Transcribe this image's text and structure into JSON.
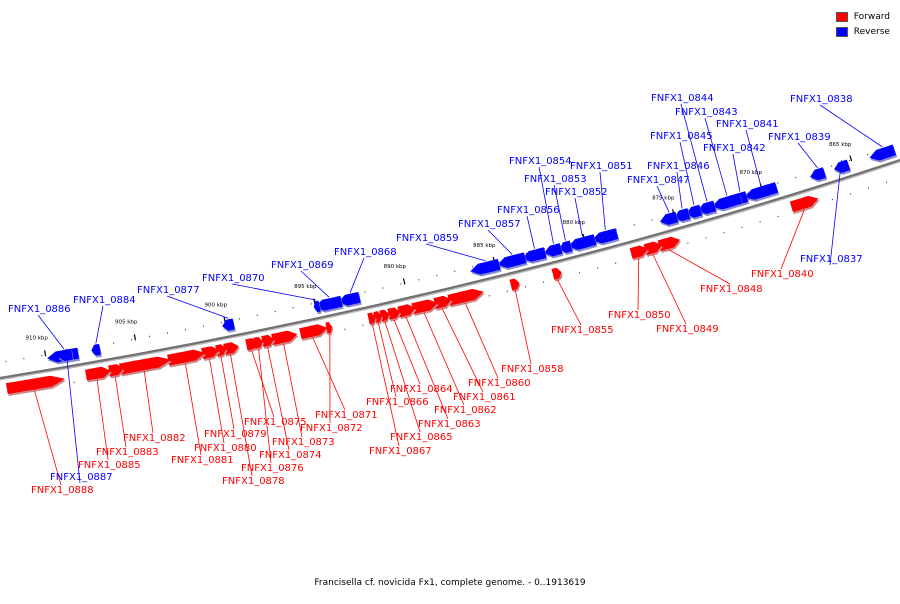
{
  "legend": {
    "forward_label": "Forward",
    "reverse_label": "Reverse",
    "forward_color": "#ff0000",
    "reverse_color": "#0000ff"
  },
  "caption": "Francisella cf. novicida Fx1, complete genome. - 0..1913619",
  "colors": {
    "forward": "#ff0000",
    "reverse": "#0000ff",
    "axis": "#888888"
  },
  "scale_labels": [
    "865 kbp",
    "870 kbp",
    "875 kbp",
    "880 kbp",
    "885 kbp",
    "890 kbp",
    "895 kbp",
    "900 kbp",
    "905 kbp",
    "910 kbp"
  ],
  "genes": [
    {
      "label": "FNFX1_0837",
      "strand": "reverse"
    },
    {
      "label": "FNFX1_0838",
      "strand": "reverse"
    },
    {
      "label": "FNFX1_0839",
      "strand": "reverse"
    },
    {
      "label": "FNFX1_0840",
      "strand": "forward"
    },
    {
      "label": "FNFX1_0841",
      "strand": "reverse"
    },
    {
      "label": "FNFX1_0842",
      "strand": "reverse"
    },
    {
      "label": "FNFX1_0843",
      "strand": "reverse"
    },
    {
      "label": "FNFX1_0844",
      "strand": "reverse"
    },
    {
      "label": "FNFX1_0845",
      "strand": "reverse"
    },
    {
      "label": "FNFX1_0846",
      "strand": "reverse"
    },
    {
      "label": "FNFX1_0847",
      "strand": "reverse"
    },
    {
      "label": "FNFX1_0848",
      "strand": "forward"
    },
    {
      "label": "FNFX1_0849",
      "strand": "forward"
    },
    {
      "label": "FNFX1_0850",
      "strand": "forward"
    },
    {
      "label": "FNFX1_0851",
      "strand": "reverse"
    },
    {
      "label": "FNFX1_0852",
      "strand": "reverse"
    },
    {
      "label": "FNFX1_0853",
      "strand": "reverse"
    },
    {
      "label": "FNFX1_0854",
      "strand": "reverse"
    },
    {
      "label": "FNFX1_0855",
      "strand": "forward"
    },
    {
      "label": "FNFX1_0856",
      "strand": "reverse"
    },
    {
      "label": "FNFX1_0857",
      "strand": "reverse"
    },
    {
      "label": "FNFX1_0858",
      "strand": "forward"
    },
    {
      "label": "FNFX1_0859",
      "strand": "reverse"
    },
    {
      "label": "FNFX1_0860",
      "strand": "forward"
    },
    {
      "label": "FNFX1_0861",
      "strand": "forward"
    },
    {
      "label": "FNFX1_0862",
      "strand": "forward"
    },
    {
      "label": "FNFX1_0863",
      "strand": "forward"
    },
    {
      "label": "FNFX1_0864",
      "strand": "forward"
    },
    {
      "label": "FNFX1_0865",
      "strand": "forward"
    },
    {
      "label": "FNFX1_0866",
      "strand": "forward"
    },
    {
      "label": "FNFX1_0867",
      "strand": "forward"
    },
    {
      "label": "FNFX1_0868",
      "strand": "reverse"
    },
    {
      "label": "FNFX1_0869",
      "strand": "reverse"
    },
    {
      "label": "FNFX1_0870",
      "strand": "reverse"
    },
    {
      "label": "FNFX1_0871",
      "strand": "forward"
    },
    {
      "label": "FNFX1_0872",
      "strand": "forward"
    },
    {
      "label": "FNFX1_0873",
      "strand": "forward"
    },
    {
      "label": "FNFX1_0874",
      "strand": "forward"
    },
    {
      "label": "FNFX1_0875",
      "strand": "forward"
    },
    {
      "label": "FNFX1_0876",
      "strand": "forward"
    },
    {
      "label": "FNFX1_0877",
      "strand": "reverse"
    },
    {
      "label": "FNFX1_0878",
      "strand": "forward"
    },
    {
      "label": "FNFX1_0879",
      "strand": "forward"
    },
    {
      "label": "FNFX1_0880",
      "strand": "forward"
    },
    {
      "label": "FNFX1_0881",
      "strand": "forward"
    },
    {
      "label": "FNFX1_0882",
      "strand": "forward"
    },
    {
      "label": "FNFX1_0883",
      "strand": "forward"
    },
    {
      "label": "FNFX1_0884",
      "strand": "reverse"
    },
    {
      "label": "FNFX1_0885",
      "strand": "forward"
    },
    {
      "label": "FNFX1_0886",
      "strand": "reverse"
    },
    {
      "label": "FNFX1_0887",
      "strand": "reverse"
    },
    {
      "label": "FNFX1_0888",
      "strand": "forward"
    }
  ]
}
